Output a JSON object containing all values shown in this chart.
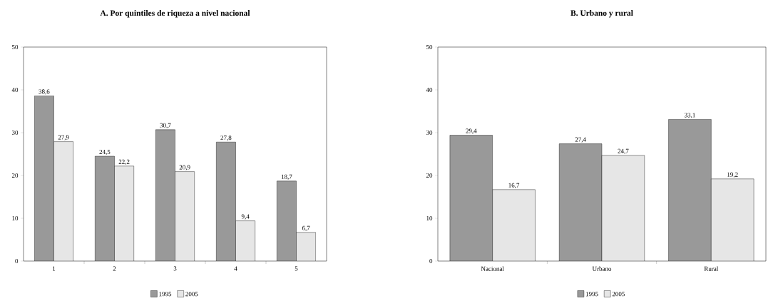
{
  "chart_data": [
    {
      "type": "bar",
      "title": "A. Por quintiles de riqueza a nivel nacional",
      "categories": [
        "1",
        "2",
        "3",
        "4",
        "5"
      ],
      "series": [
        {
          "name": "1995",
          "color": "#999999",
          "values": [
            38.6,
            24.5,
            30.7,
            27.8,
            18.7
          ],
          "value_labels": [
            "38,6",
            "24,5",
            "30,7",
            "27,8",
            "18,7"
          ]
        },
        {
          "name": "2005",
          "color": "#e6e6e6",
          "values": [
            27.9,
            22.2,
            20.9,
            9.4,
            6.7
          ],
          "value_labels": [
            "27,9",
            "22,2",
            "20,9",
            "9,4",
            "6,7"
          ]
        }
      ],
      "ylim": [
        0,
        50
      ],
      "yticks": [
        0,
        10,
        20,
        30,
        40,
        50
      ],
      "grid": false,
      "legend": "bottom"
    },
    {
      "type": "bar",
      "title": "B. Urbano y rural",
      "categories": [
        "Nacional",
        "Urbano",
        "Rural"
      ],
      "series": [
        {
          "name": "1995",
          "color": "#999999",
          "values": [
            29.4,
            27.4,
            33.1
          ],
          "value_labels": [
            "29,4",
            "27,4",
            "33,1"
          ]
        },
        {
          "name": "2005",
          "color": "#e6e6e6",
          "values": [
            16.7,
            24.7,
            19.2
          ],
          "value_labels": [
            "16,7",
            "24,7",
            "19,2"
          ]
        }
      ],
      "ylim": [
        0,
        50
      ],
      "yticks": [
        0,
        10,
        20,
        30,
        40,
        50
      ],
      "grid": false,
      "legend": "bottom"
    }
  ]
}
